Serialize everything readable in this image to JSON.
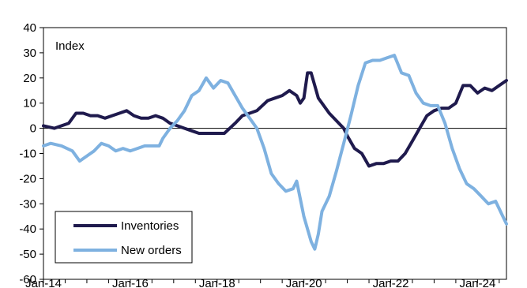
{
  "chart_data": {
    "type": "line",
    "title": "",
    "xlabel": "",
    "ylabel": "",
    "annotation": "Index",
    "ylim": [
      -60,
      40
    ],
    "yticks": [
      "40",
      "30",
      "20",
      "10",
      "0",
      "-10",
      "-20",
      "-30",
      "-40",
      "-50",
      "-60"
    ],
    "xlim": [
      "2014-01",
      "2024-09"
    ],
    "xticks": [
      "Jan-14",
      "Jan-16",
      "Jan-18",
      "Jan-20",
      "Jan-22",
      "Jan-24"
    ],
    "grid": false,
    "zero_line": true,
    "legend": "bottom-left",
    "series": [
      {
        "name": "Inventories",
        "color": "#1f1a4d",
        "points": [
          [
            "2014-01",
            1
          ],
          [
            "2014-04",
            0
          ],
          [
            "2014-06",
            1
          ],
          [
            "2014-08",
            2
          ],
          [
            "2014-10",
            6
          ],
          [
            "2014-12",
            6
          ],
          [
            "2015-02",
            5
          ],
          [
            "2015-04",
            5
          ],
          [
            "2015-06",
            4
          ],
          [
            "2015-08",
            5
          ],
          [
            "2015-10",
            6
          ],
          [
            "2015-12",
            7
          ],
          [
            "2016-02",
            5
          ],
          [
            "2016-04",
            4
          ],
          [
            "2016-06",
            4
          ],
          [
            "2016-08",
            5
          ],
          [
            "2016-10",
            4
          ],
          [
            "2016-12",
            2
          ],
          [
            "2017-02",
            1
          ],
          [
            "2017-04",
            0
          ],
          [
            "2017-06",
            -1
          ],
          [
            "2017-08",
            -2
          ],
          [
            "2017-10",
            -2
          ],
          [
            "2017-12",
            -2
          ],
          [
            "2018-03",
            -2
          ],
          [
            "2018-06",
            2
          ],
          [
            "2018-08",
            5
          ],
          [
            "2018-10",
            6
          ],
          [
            "2018-12",
            7
          ],
          [
            "2019-03",
            11
          ],
          [
            "2019-05",
            12
          ],
          [
            "2019-07",
            13
          ],
          [
            "2019-09",
            15
          ],
          [
            "2019-11",
            13
          ],
          [
            "2019-12",
            10
          ],
          [
            "2020-01",
            12
          ],
          [
            "2020-02",
            22
          ],
          [
            "2020-03",
            22
          ],
          [
            "2020-04",
            17
          ],
          [
            "2020-05",
            12
          ],
          [
            "2020-06",
            10
          ],
          [
            "2020-08",
            6
          ],
          [
            "2020-10",
            3
          ],
          [
            "2020-12",
            0
          ],
          [
            "2021-01",
            -3
          ],
          [
            "2021-03",
            -8
          ],
          [
            "2021-05",
            -10
          ],
          [
            "2021-07",
            -15
          ],
          [
            "2021-09",
            -14
          ],
          [
            "2021-11",
            -14
          ],
          [
            "2022-01",
            -13
          ],
          [
            "2022-03",
            -13
          ],
          [
            "2022-05",
            -10
          ],
          [
            "2022-07",
            -5
          ],
          [
            "2022-09",
            0
          ],
          [
            "2022-11",
            5
          ],
          [
            "2023-01",
            7
          ],
          [
            "2023-03",
            8
          ],
          [
            "2023-05",
            8
          ],
          [
            "2023-07",
            10
          ],
          [
            "2023-09",
            17
          ],
          [
            "2023-11",
            17
          ],
          [
            "2024-01",
            14
          ],
          [
            "2024-03",
            16
          ],
          [
            "2024-05",
            15
          ],
          [
            "2024-07",
            17
          ],
          [
            "2024-09",
            19
          ]
        ]
      },
      {
        "name": "New orders",
        "color": "#7eb1e0",
        "points": [
          [
            "2014-01",
            -7
          ],
          [
            "2014-03",
            -6
          ],
          [
            "2014-06",
            -7
          ],
          [
            "2014-09",
            -9
          ],
          [
            "2014-11",
            -13
          ],
          [
            "2015-01",
            -11
          ],
          [
            "2015-03",
            -9
          ],
          [
            "2015-05",
            -6
          ],
          [
            "2015-07",
            -7
          ],
          [
            "2015-09",
            -9
          ],
          [
            "2015-11",
            -8
          ],
          [
            "2016-01",
            -9
          ],
          [
            "2016-03",
            -8
          ],
          [
            "2016-05",
            -7
          ],
          [
            "2016-07",
            -7
          ],
          [
            "2016-09",
            -7
          ],
          [
            "2016-10",
            -4
          ],
          [
            "2016-12",
            0
          ],
          [
            "2017-02",
            3
          ],
          [
            "2017-04",
            7
          ],
          [
            "2017-06",
            13
          ],
          [
            "2017-08",
            15
          ],
          [
            "2017-10",
            20
          ],
          [
            "2017-12",
            16
          ],
          [
            "2018-02",
            19
          ],
          [
            "2018-04",
            18
          ],
          [
            "2018-06",
            13
          ],
          [
            "2018-08",
            8
          ],
          [
            "2018-10",
            4
          ],
          [
            "2018-12",
            0
          ],
          [
            "2019-02",
            -8
          ],
          [
            "2019-04",
            -18
          ],
          [
            "2019-06",
            -22
          ],
          [
            "2019-08",
            -25
          ],
          [
            "2019-10",
            -24
          ],
          [
            "2019-11",
            -21
          ],
          [
            "2020-01",
            -35
          ],
          [
            "2020-03",
            -45
          ],
          [
            "2020-04",
            -48
          ],
          [
            "2020-05",
            -42
          ],
          [
            "2020-06",
            -33
          ],
          [
            "2020-08",
            -27
          ],
          [
            "2020-10",
            -17
          ],
          [
            "2020-12",
            -6
          ],
          [
            "2021-02",
            5
          ],
          [
            "2021-04",
            17
          ],
          [
            "2021-06",
            26
          ],
          [
            "2021-08",
            27
          ],
          [
            "2021-10",
            27
          ],
          [
            "2021-12",
            28
          ],
          [
            "2022-02",
            29
          ],
          [
            "2022-04",
            22
          ],
          [
            "2022-06",
            21
          ],
          [
            "2022-08",
            14
          ],
          [
            "2022-10",
            10
          ],
          [
            "2022-12",
            9
          ],
          [
            "2023-02",
            9
          ],
          [
            "2023-04",
            2
          ],
          [
            "2023-06",
            -8
          ],
          [
            "2023-08",
            -16
          ],
          [
            "2023-10",
            -22
          ],
          [
            "2023-12",
            -24
          ],
          [
            "2024-02",
            -27
          ],
          [
            "2024-04",
            -30
          ],
          [
            "2024-06",
            -29
          ],
          [
            "2024-09",
            -38
          ]
        ]
      }
    ]
  }
}
